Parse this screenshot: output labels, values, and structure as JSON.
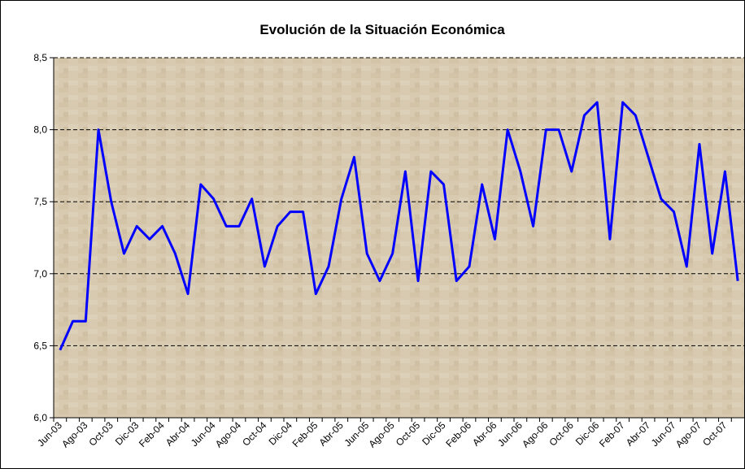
{
  "chart_data": {
    "type": "line",
    "title": "Evolución de la Situación Económica",
    "categories": [
      "Jun-03",
      null,
      "Ago-03",
      null,
      "Oct-03",
      null,
      "Dic-03",
      null,
      "Feb-04",
      null,
      "Abr-04",
      null,
      "Jun-04",
      null,
      "Ago-04",
      null,
      "Oct-04",
      null,
      "Dic-04",
      null,
      "Feb-05",
      null,
      "Abr-05",
      null,
      "Jun-05",
      null,
      "Ago-05",
      null,
      "Oct-05",
      null,
      "Dic-05",
      null,
      "Feb-06",
      null,
      "Abr-06",
      null,
      "Jun-06",
      null,
      "Ago-06",
      null,
      "Oct-06",
      null,
      "Dic-06",
      null,
      "Feb-07",
      null,
      "Abr-07",
      null,
      "Jun-07",
      null,
      "Ago-07",
      null,
      "Oct-07",
      null
    ],
    "series": [
      {
        "color": "#0000ff",
        "values": [
          6.47,
          6.67,
          6.67,
          8.0,
          7.5,
          7.14,
          7.33,
          7.24,
          7.33,
          7.14,
          6.86,
          7.62,
          7.52,
          7.33,
          7.33,
          7.52,
          7.05,
          7.33,
          7.43,
          7.43,
          6.86,
          7.05,
          7.52,
          7.81,
          7.14,
          6.95,
          7.14,
          7.71,
          6.95,
          7.71,
          7.62,
          6.95,
          7.05,
          7.62,
          7.24,
          8.0,
          7.71,
          7.33,
          8.0,
          8.0,
          7.71,
          8.1,
          8.19,
          7.24,
          8.19,
          8.1,
          7.81,
          7.52,
          7.43,
          7.05,
          7.9,
          7.14,
          7.71,
          6.95
        ]
      }
    ],
    "ylim": [
      6.0,
      8.5
    ],
    "yticks": [
      {
        "value": 6.0,
        "label": "6,0"
      },
      {
        "value": 6.5,
        "label": "6,5"
      },
      {
        "value": 7.0,
        "label": "7,0"
      },
      {
        "value": 7.5,
        "label": "7,5"
      },
      {
        "value": 8.0,
        "label": "8,0"
      },
      {
        "value": 8.5,
        "label": "8,5"
      }
    ],
    "grid": true
  }
}
